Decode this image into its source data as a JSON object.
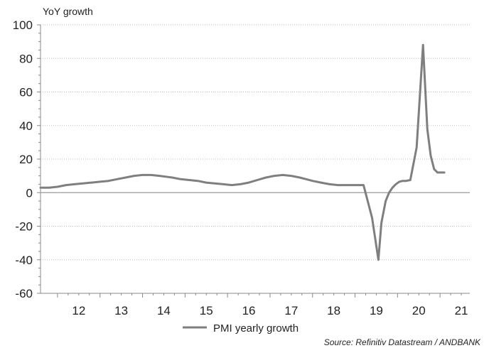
{
  "chart_data": {
    "type": "line",
    "title": "",
    "ylabel": "YoY growth",
    "xlabel": "",
    "ylim": [
      -60,
      100
    ],
    "yticks": [
      100,
      80,
      60,
      40,
      20,
      0,
      -20,
      -40,
      -60
    ],
    "xlim": [
      2011.6,
      2021.7
    ],
    "xticks": [
      {
        "label": "12",
        "at": 2012.5
      },
      {
        "label": "13",
        "at": 2013.5
      },
      {
        "label": "14",
        "at": 2014.5
      },
      {
        "label": "15",
        "at": 2015.5
      },
      {
        "label": "16",
        "at": 2016.5
      },
      {
        "label": "17",
        "at": 2017.5
      },
      {
        "label": "18",
        "at": 2018.5
      },
      {
        "label": "19",
        "at": 2019.5
      },
      {
        "label": "20",
        "at": 2020.5
      },
      {
        "label": "21",
        "at": 2021.5
      }
    ],
    "grid": true,
    "legend_position": "bottom",
    "source": "Source: Refinitiv Datastream / ANDBANK",
    "series": [
      {
        "name": "PMI yearly growth",
        "color": "#7f7f7f",
        "x": [
          2011.6,
          2011.8,
          2012.0,
          2012.2,
          2012.4,
          2012.6,
          2012.8,
          2013.0,
          2013.2,
          2013.4,
          2013.6,
          2013.8,
          2014.0,
          2014.2,
          2014.4,
          2014.55,
          2014.7,
          2014.9,
          2015.1,
          2015.3,
          2015.5,
          2015.7,
          2015.9,
          2016.1,
          2016.3,
          2016.5,
          2016.7,
          2016.9,
          2017.1,
          2017.3,
          2017.5,
          2017.7,
          2017.85,
          2018.0,
          2018.2,
          2018.4,
          2018.6,
          2018.8,
          2019.0,
          2019.2,
          2019.4,
          2019.55,
          2019.62,
          2019.72,
          2019.8,
          2019.88,
          2019.96,
          2020.04,
          2020.12,
          2020.2,
          2020.3,
          2020.45,
          2020.6,
          2020.7,
          2020.78,
          2020.86,
          2020.94,
          2021.02,
          2021.1
        ],
        "values": [
          3,
          3,
          3.5,
          4.5,
          5,
          5.5,
          6,
          6.5,
          7,
          8,
          9,
          10,
          10.5,
          10.5,
          10,
          9.5,
          9,
          8,
          7.5,
          7,
          6,
          5.5,
          5,
          4.5,
          5,
          6,
          7.5,
          9,
          10,
          10.5,
          10,
          9,
          8,
          7,
          6,
          5,
          4.5,
          4.5,
          4.5,
          4.5,
          -15,
          -40,
          -18,
          -5,
          0,
          3,
          5,
          6.5,
          7,
          7,
          7.5,
          27,
          88,
          38,
          22,
          14,
          12,
          12,
          12
        ]
      }
    ]
  }
}
